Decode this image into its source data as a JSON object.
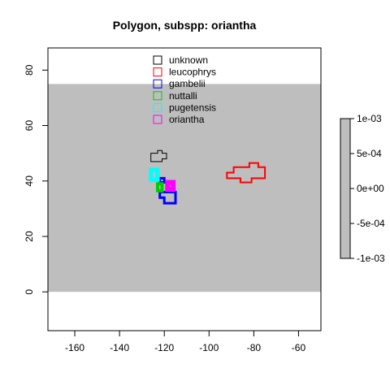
{
  "chart_data": {
    "type": "map",
    "title": "Polygon, subspp: oriantha",
    "xlim": [
      -172,
      -50
    ],
    "ylim": [
      -14,
      88
    ],
    "x_ticks": [
      -160,
      -140,
      -120,
      -100,
      -80,
      -60
    ],
    "y_ticks": [
      0,
      20,
      40,
      60,
      80
    ],
    "x_tick_labels": [
      "-160",
      "-140",
      "-120",
      "-100",
      "-80",
      "-60"
    ],
    "y_tick_labels": [
      "0",
      "20",
      "40",
      "60",
      "80"
    ],
    "background_raster": {
      "color": "#bebebe",
      "x": [
        -172,
        -50
      ],
      "y": [
        0,
        75
      ],
      "value": 0
    },
    "colorbar": {
      "color": "#bebebe",
      "ticks": [
        0.001,
        0.0005,
        0,
        -0.0005,
        -0.001
      ],
      "tick_labels": [
        "1e-03",
        "5e-04",
        "0e+00",
        "-5e-04",
        "-1e-03"
      ]
    },
    "legend_position": "top-center",
    "series": [
      {
        "name": "unknown",
        "color": "#000000",
        "line_width": 1,
        "polygons": [
          [
            [
              -126,
              47
            ],
            [
              -126,
              50
            ],
            [
              -123,
              50
            ],
            [
              -123,
              51
            ],
            [
              -121,
              51
            ],
            [
              -121,
              50
            ],
            [
              -119,
              50
            ],
            [
              -119,
              48
            ],
            [
              -121,
              48
            ],
            [
              -121,
              47
            ]
          ]
        ]
      },
      {
        "name": "leucophrys",
        "color": "#ff0000",
        "line_width": 2,
        "polygons": [
          [
            [
              -92,
              41
            ],
            [
              -92,
              43
            ],
            [
              -89,
              43
            ],
            [
              -89,
              45
            ],
            [
              -82,
              45
            ],
            [
              -82,
              46.5
            ],
            [
              -78,
              46.5
            ],
            [
              -78,
              45
            ],
            [
              -75,
              45
            ],
            [
              -75,
              41
            ],
            [
              -81,
              41
            ],
            [
              -81,
              39.5
            ],
            [
              -86,
              39.5
            ],
            [
              -86,
              41
            ]
          ]
        ]
      },
      {
        "name": "gambelii",
        "color": "#0000ff",
        "line_width": 3,
        "polygons": [
          [
            [
              -122,
              39.5
            ],
            [
              -122,
              41
            ],
            [
              -120,
              41
            ],
            [
              -120,
              39.5
            ]
          ],
          [
            [
              -120,
              32
            ],
            [
              -120,
              34
            ],
            [
              -122,
              34
            ],
            [
              -122,
              36
            ],
            [
              -115,
              36
            ],
            [
              -115,
              32
            ]
          ]
        ]
      },
      {
        "name": "nuttalli",
        "color": "#00cd00",
        "line_width": 4,
        "polygons": [
          [
            [
              -123,
              36.5
            ],
            [
              -123,
              39
            ],
            [
              -121,
              39
            ],
            [
              -121,
              36.5
            ]
          ]
        ]
      },
      {
        "name": "pugetensis",
        "color": "#00ffff",
        "line_width": 5,
        "polygons": [
          [
            [
              -126,
              40.5
            ],
            [
              -126,
              44
            ],
            [
              -123,
              44
            ],
            [
              -123,
              40.5
            ]
          ]
        ]
      },
      {
        "name": "oriantha",
        "color": "#ff00ff",
        "line_width": 6,
        "polygons": [
          [
            [
              -118.5,
              37
            ],
            [
              -118.5,
              39.5
            ],
            [
              -116,
              39.5
            ],
            [
              -116,
              37
            ]
          ]
        ]
      }
    ]
  }
}
